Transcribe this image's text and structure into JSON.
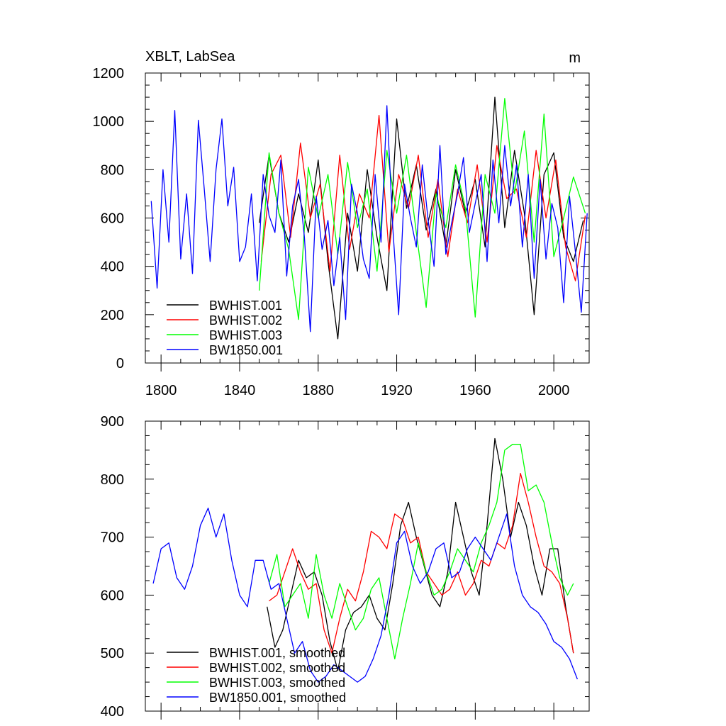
{
  "chart_data": [
    {
      "type": "line",
      "title_left": "XBLT, LabSea",
      "title_right": "m",
      "xlabel": "",
      "ylabel": "",
      "xlim": [
        1792,
        2018
      ],
      "ylim": [
        0,
        1200
      ],
      "xticks": [
        1800,
        1840,
        1880,
        1920,
        1960,
        2000
      ],
      "xtick_labels": [
        "1800",
        "1840",
        "1880",
        "1920",
        "1960",
        "2000"
      ],
      "yticks": [
        0,
        200,
        400,
        600,
        800,
        1000,
        1200
      ],
      "ytick_labels": [
        "0",
        "200",
        "400",
        "600",
        "800",
        "1000",
        "1200"
      ],
      "legend_position": "bottom-left",
      "series": [
        {
          "name": "BWHIST.001",
          "color": "#000000",
          "x": [
            1850,
            1855,
            1860,
            1865,
            1870,
            1875,
            1880,
            1885,
            1890,
            1895,
            1900,
            1905,
            1910,
            1915,
            1920,
            1925,
            1930,
            1935,
            1940,
            1945,
            1950,
            1955,
            1960,
            1965,
            1970,
            1975,
            1980,
            1985,
            1990,
            1995,
            2000,
            2005,
            2010,
            2015
          ],
          "y": [
            580,
            860,
            620,
            500,
            700,
            540,
            840,
            420,
            100,
            620,
            380,
            800,
            520,
            300,
            1010,
            640,
            820,
            550,
            720,
            480,
            800,
            620,
            760,
            480,
            1100,
            560,
            880,
            620,
            200,
            780,
            870,
            520,
            420,
            590
          ]
        },
        {
          "name": "BWHIST.002",
          "color": "#ff0000",
          "x": [
            1851,
            1856,
            1861,
            1866,
            1871,
            1876,
            1881,
            1886,
            1891,
            1896,
            1901,
            1906,
            1911,
            1916,
            1921,
            1926,
            1931,
            1936,
            1941,
            1946,
            1951,
            1956,
            1961,
            1966,
            1971,
            1976,
            1981,
            1986,
            1991,
            1996,
            2001,
            2006,
            2011,
            2016
          ],
          "y": [
            420,
            780,
            860,
            520,
            910,
            600,
            740,
            380,
            860,
            470,
            700,
            600,
            1025,
            460,
            780,
            640,
            860,
            520,
            760,
            440,
            720,
            580,
            820,
            500,
            900,
            680,
            720,
            520,
            880,
            600,
            840,
            480,
            340,
            610
          ]
        },
        {
          "name": "BWHIST.003",
          "color": "#00ff00",
          "x": [
            1850,
            1855,
            1860,
            1865,
            1870,
            1875,
            1880,
            1885,
            1890,
            1895,
            1900,
            1905,
            1910,
            1915,
            1920,
            1925,
            1930,
            1935,
            1940,
            1945,
            1950,
            1955,
            1960,
            1965,
            1970,
            1975,
            1980,
            1985,
            1990,
            1995,
            2000,
            2005,
            2010,
            2016
          ],
          "y": [
            300,
            870,
            620,
            470,
            180,
            810,
            600,
            780,
            450,
            830,
            560,
            720,
            380,
            880,
            620,
            860,
            540,
            230,
            700,
            560,
            820,
            640,
            190,
            780,
            620,
            1095,
            700,
            960,
            500,
            1030,
            440,
            600,
            770,
            620
          ]
        },
        {
          "name": "BW1850.001",
          "color": "#0000ff",
          "x": [
            1795,
            1798,
            1801,
            1804,
            1807,
            1810,
            1813,
            1816,
            1819,
            1822,
            1825,
            1828,
            1831,
            1834,
            1837,
            1840,
            1843,
            1846,
            1849,
            1852,
            1855,
            1858,
            1861,
            1864,
            1867,
            1870,
            1873,
            1876,
            1879,
            1882,
            1885,
            1888,
            1891,
            1894,
            1897,
            1900,
            1903,
            1906,
            1909,
            1912,
            1915,
            1918,
            1921,
            1924,
            1927,
            1930,
            1933,
            1936,
            1939,
            1942,
            1945,
            1948,
            1951,
            1954,
            1957,
            1960,
            1963,
            1966,
            1969,
            1972,
            1975,
            1978,
            1981,
            1984,
            1987,
            1990,
            1993,
            1996,
            1999,
            2002,
            2005,
            2008,
            2011,
            2014,
            2017
          ],
          "y": [
            670,
            310,
            800,
            500,
            1045,
            430,
            700,
            370,
            1005,
            720,
            420,
            800,
            1010,
            650,
            810,
            420,
            480,
            700,
            340,
            780,
            610,
            540,
            840,
            360,
            650,
            760,
            520,
            130,
            690,
            470,
            590,
            320,
            520,
            180,
            740,
            620,
            430,
            350,
            780,
            500,
            1065,
            560,
            200,
            740,
            600,
            480,
            820,
            590,
            400,
            900,
            450,
            580,
            700,
            850,
            540,
            660,
            780,
            420,
            840,
            580,
            900,
            650,
            820,
            480,
            780,
            350,
            760,
            430,
            660,
            560,
            250,
            690,
            460,
            210,
            620
          ]
        }
      ]
    },
    {
      "type": "line",
      "title_left": "",
      "title_right": "",
      "xlabel": "",
      "ylabel": "",
      "xlim": [
        1792,
        2018
      ],
      "ylim": [
        400,
        900
      ],
      "xticks": [
        1800,
        1840,
        1880,
        1920,
        1960,
        2000
      ],
      "xtick_labels": [],
      "yticks": [
        400,
        500,
        600,
        700,
        800,
        900
      ],
      "ytick_labels": [
        "400",
        "500",
        "600",
        "700",
        "800",
        "900"
      ],
      "legend_position": "bottom-left",
      "series": [
        {
          "name": "BWHIST.001, smoothed",
          "color": "#000000",
          "x": [
            1854,
            1858,
            1862,
            1866,
            1870,
            1874,
            1878,
            1882,
            1886,
            1890,
            1894,
            1898,
            1902,
            1906,
            1910,
            1914,
            1918,
            1922,
            1926,
            1930,
            1934,
            1938,
            1942,
            1946,
            1950,
            1954,
            1958,
            1962,
            1966,
            1970,
            1974,
            1978,
            1982,
            1986,
            1990,
            1994,
            1998,
            2002,
            2006,
            2010
          ],
          "y": [
            580,
            510,
            540,
            600,
            660,
            630,
            640,
            600,
            520,
            470,
            540,
            570,
            580,
            600,
            560,
            540,
            620,
            720,
            760,
            700,
            650,
            600,
            580,
            640,
            760,
            700,
            640,
            600,
            720,
            870,
            800,
            700,
            760,
            720,
            650,
            600,
            680,
            680,
            580,
            500
          ]
        },
        {
          "name": "BWHIST.002, smoothed",
          "color": "#ff0000",
          "x": [
            1855,
            1859,
            1863,
            1867,
            1871,
            1875,
            1879,
            1883,
            1887,
            1891,
            1895,
            1899,
            1903,
            1907,
            1911,
            1915,
            1919,
            1923,
            1927,
            1931,
            1935,
            1939,
            1943,
            1947,
            1951,
            1955,
            1959,
            1963,
            1967,
            1971,
            1975,
            1979,
            1983,
            1987,
            1991,
            1995,
            1999,
            2003,
            2007,
            2010
          ],
          "y": [
            590,
            600,
            640,
            680,
            640,
            610,
            620,
            540,
            500,
            560,
            610,
            590,
            640,
            710,
            700,
            680,
            740,
            730,
            690,
            700,
            640,
            620,
            600,
            610,
            640,
            600,
            620,
            660,
            650,
            690,
            680,
            720,
            810,
            760,
            700,
            650,
            640,
            620,
            560,
            500
          ]
        },
        {
          "name": "BWHIST.003, smoothed",
          "color": "#00ff00",
          "x": [
            1855,
            1859,
            1863,
            1867,
            1871,
            1875,
            1879,
            1883,
            1887,
            1891,
            1895,
            1899,
            1903,
            1907,
            1911,
            1915,
            1919,
            1923,
            1927,
            1931,
            1935,
            1939,
            1943,
            1947,
            1951,
            1955,
            1959,
            1963,
            1967,
            1971,
            1975,
            1979,
            1983,
            1987,
            1991,
            1995,
            1999,
            2003,
            2007,
            2010
          ],
          "y": [
            620,
            670,
            580,
            600,
            620,
            560,
            670,
            600,
            560,
            620,
            580,
            540,
            560,
            610,
            630,
            560,
            490,
            560,
            620,
            690,
            640,
            600,
            610,
            640,
            680,
            660,
            640,
            690,
            720,
            760,
            850,
            860,
            860,
            780,
            790,
            760,
            690,
            630,
            600,
            620
          ]
        },
        {
          "name": "BW1850.001, smoothed",
          "color": "#0000ff",
          "x": [
            1796,
            1800,
            1804,
            1808,
            1812,
            1816,
            1820,
            1824,
            1828,
            1832,
            1836,
            1840,
            1844,
            1848,
            1852,
            1856,
            1860,
            1864,
            1868,
            1872,
            1876,
            1880,
            1884,
            1888,
            1892,
            1896,
            1900,
            1904,
            1908,
            1912,
            1916,
            1920,
            1924,
            1928,
            1932,
            1936,
            1940,
            1944,
            1948,
            1952,
            1956,
            1960,
            1964,
            1968,
            1972,
            1976,
            1980,
            1984,
            1988,
            1992,
            1996,
            2000,
            2004,
            2008,
            2012
          ],
          "y": [
            620,
            680,
            690,
            630,
            610,
            650,
            720,
            750,
            700,
            740,
            660,
            600,
            580,
            660,
            660,
            610,
            620,
            560,
            500,
            520,
            470,
            450,
            460,
            480,
            470,
            460,
            450,
            460,
            490,
            530,
            600,
            690,
            710,
            650,
            620,
            640,
            680,
            690,
            630,
            640,
            680,
            700,
            680,
            660,
            700,
            740,
            650,
            600,
            580,
            570,
            550,
            520,
            510,
            490,
            455
          ]
        }
      ]
    }
  ]
}
